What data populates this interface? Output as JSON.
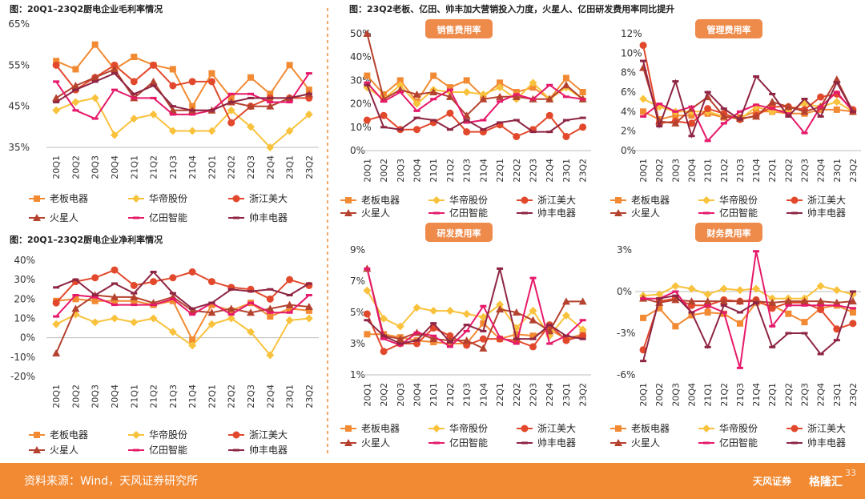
{
  "colors": {
    "orange": "#f28a33",
    "yellow": "#f9c23c",
    "red": "#e2492c",
    "darkred": "#b5422f",
    "pink": "#e6196a",
    "maroon": "#8e2543",
    "badge": "#ee8a4a"
  },
  "legend_names": [
    "老板电器",
    "华帝股份",
    "浙江美大",
    "火星人",
    "亿田智能",
    "帅丰电器"
  ],
  "quarters": [
    "20Q1",
    "20Q2",
    "20Q3",
    "20Q4",
    "21Q1",
    "21Q2",
    "21Q3",
    "21Q4",
    "22Q1",
    "22Q2",
    "22Q3",
    "22Q4",
    "23Q1",
    "23Q2"
  ],
  "footer": {
    "source": "资料来源：Wind，天风证券研究所",
    "logo_tf": "天风证券",
    "logo_glh": "格隆汇",
    "page": "33"
  },
  "chart_data": [
    {
      "type": "line",
      "title": "图：20Q1–23Q2厨电企业毛利率情况",
      "categories": [
        "20Q1",
        "20Q2",
        "20Q3",
        "20Q4",
        "21Q1",
        "21Q2",
        "21Q3",
        "21Q4",
        "22Q1",
        "22Q2",
        "22Q3",
        "22Q4",
        "23Q1",
        "23Q2"
      ],
      "yticks": [
        "65%",
        "55%",
        "45%",
        "35%"
      ],
      "ylim": [
        35,
        65
      ],
      "series": [
        {
          "name": "老板电器",
          "values": [
            56,
            54,
            60,
            54,
            57,
            55,
            54,
            45,
            53,
            47,
            52,
            48,
            55,
            49
          ]
        },
        {
          "name": "华帝股份",
          "values": [
            44,
            46,
            47,
            38,
            42,
            43,
            39,
            39,
            39,
            44,
            40,
            35,
            39,
            43
          ]
        },
        {
          "name": "浙江美大",
          "values": [
            55,
            49,
            52,
            55,
            51,
            55,
            50,
            51,
            51,
            41,
            45,
            47,
            47,
            47
          ]
        },
        {
          "name": "火星人",
          "values": [
            47,
            50,
            52,
            54,
            47,
            51,
            44,
            44,
            44,
            46,
            45,
            45,
            47,
            48
          ]
        },
        {
          "name": "亿田智能",
          "values": [
            51,
            44,
            42,
            49,
            47,
            47,
            43,
            43,
            44,
            48,
            48,
            46,
            46,
            53
          ]
        },
        {
          "name": "帅丰电器",
          "values": [
            46,
            49,
            51,
            53,
            48,
            50,
            45,
            44,
            44,
            46,
            47,
            47,
            47,
            48
          ]
        }
      ]
    },
    {
      "type": "line",
      "title": "图：20Q1–23Q2厨电企业净利率情况",
      "categories": [
        "20Q1",
        "20Q2",
        "20Q3",
        "20Q4",
        "21Q1",
        "21Q2",
        "21Q3",
        "21Q4",
        "22Q1",
        "22Q2",
        "22Q3",
        "22Q4",
        "23Q1",
        "23Q2"
      ],
      "yticks": [
        "40%",
        "30%",
        "20%",
        "10%",
        "0%",
        "-10%",
        "-20%"
      ],
      "ylim": [
        -20,
        40
      ],
      "series": [
        {
          "name": "老板电器",
          "values": [
            19,
            20,
            19,
            19,
            19,
            17,
            19,
            -1,
            17,
            14,
            18,
            11,
            15,
            14
          ]
        },
        {
          "name": "华帝股份",
          "values": [
            7,
            12,
            8,
            10,
            8,
            10,
            3,
            -4,
            7,
            10,
            3,
            -9,
            9,
            10
          ]
        },
        {
          "name": "浙江美大",
          "values": [
            18,
            29,
            31,
            35,
            27,
            29,
            31,
            34,
            29,
            26,
            25,
            20,
            30,
            27
          ]
        },
        {
          "name": "火星人",
          "values": [
            -8,
            15,
            22,
            21,
            21,
            18,
            21,
            14,
            13,
            15,
            13,
            15,
            17,
            16
          ]
        },
        {
          "name": "亿田智能",
          "values": [
            11,
            22,
            21,
            17,
            17,
            17,
            20,
            12,
            18,
            12,
            18,
            13,
            13,
            22
          ]
        },
        {
          "name": "帅丰电器",
          "values": [
            26,
            30,
            22,
            28,
            23,
            34,
            23,
            15,
            18,
            25,
            24,
            25,
            22,
            28
          ]
        }
      ]
    },
    {
      "type": "line",
      "title": "图：23Q2老板、亿田、帅丰加大营销投入力度，火星人、亿田研发费用率同比提升",
      "subtitle": "销售费用率",
      "categories": [
        "20Q1",
        "20Q2",
        "20Q3",
        "20Q4",
        "21Q1",
        "21Q2",
        "21Q3",
        "21Q4",
        "22Q1",
        "22Q2",
        "22Q3",
        "22Q4",
        "23Q1",
        "23Q2"
      ],
      "yticks": [
        "50%",
        "40%",
        "30%",
        "20%",
        "10%",
        "0%"
      ],
      "ylim": [
        0,
        50
      ],
      "series": [
        {
          "name": "老板电器",
          "values": [
            32,
            24,
            30,
            21,
            32,
            27,
            30,
            23,
            29,
            25,
            27,
            22,
            31,
            25
          ]
        },
        {
          "name": "华帝股份",
          "values": [
            27,
            22,
            28,
            20,
            26,
            25,
            25,
            24,
            27,
            22,
            29,
            22,
            27,
            22
          ]
        },
        {
          "name": "浙江美大",
          "values": [
            13,
            15,
            9,
            9,
            12,
            16,
            8,
            8,
            11,
            6,
            9,
            15,
            6,
            10
          ]
        },
        {
          "name": "火星人",
          "values": [
            50,
            22,
            26,
            24,
            25,
            23,
            15,
            22,
            23,
            23,
            22,
            22,
            28,
            22
          ]
        },
        {
          "name": "亿田智能",
          "values": [
            29,
            21,
            25,
            17,
            22,
            26,
            12,
            13,
            21,
            24,
            22,
            28,
            23,
            22
          ]
        },
        {
          "name": "帅丰电器",
          "values": [
            28,
            10,
            9,
            14,
            13,
            9,
            13,
            9,
            12,
            13,
            8,
            8,
            13,
            14
          ]
        }
      ]
    },
    {
      "type": "line",
      "subtitle": "管理费用率",
      "categories": [
        "20Q1",
        "20Q2",
        "20Q3",
        "20Q4",
        "21Q1",
        "21Q2",
        "21Q3",
        "21Q4",
        "22Q1",
        "22Q2",
        "22Q3",
        "22Q4",
        "23Q1",
        "23Q2"
      ],
      "yticks": [
        "12%",
        "10%",
        "8%",
        "6%",
        "4%",
        "2%",
        "0%"
      ],
      "ylim": [
        0,
        12
      ],
      "series": [
        {
          "name": "老板电器",
          "values": [
            4.0,
            3.2,
            3.6,
            3.6,
            3.8,
            3.4,
            3.4,
            4.0,
            4.0,
            3.8,
            3.8,
            4.2,
            4.2,
            4.0
          ]
        },
        {
          "name": "华帝股份",
          "values": [
            5.3,
            4.5,
            4.0,
            4.0,
            4.0,
            3.5,
            3.2,
            4.5,
            4.0,
            4.2,
            4.8,
            4.5,
            5.0,
            4.0
          ]
        },
        {
          "name": "浙江美大",
          "values": [
            10.8,
            2.8,
            3.0,
            2.8,
            4.3,
            3.8,
            3.2,
            3.6,
            4.5,
            4.5,
            4.2,
            5.5,
            5.8,
            4.2
          ]
        },
        {
          "name": "火星人",
          "values": [
            8.5,
            3.0,
            2.8,
            4.3,
            5.5,
            3.5,
            3.3,
            3.5,
            5.0,
            4.5,
            4.0,
            4.5,
            7.3,
            4.0
          ]
        },
        {
          "name": "亿田智能",
          "values": [
            3.5,
            4.8,
            4.0,
            4.5,
            1.0,
            2.8,
            4.0,
            4.7,
            4.3,
            3.8,
            1.8,
            4.5,
            6.0,
            4.0
          ]
        },
        {
          "name": "帅丰电器",
          "values": [
            9.2,
            2.5,
            7.1,
            1.5,
            6.0,
            4.3,
            3.2,
            7.6,
            5.8,
            3.5,
            5.3,
            3.5,
            7.0,
            4.0
          ]
        }
      ]
    },
    {
      "type": "line",
      "subtitle": "研发费用率",
      "categories": [
        "20Q1",
        "20Q2",
        "20Q3",
        "20Q4",
        "21Q1",
        "21Q2",
        "21Q3",
        "21Q4",
        "22Q1",
        "22Q2",
        "22Q3",
        "22Q4",
        "23Q1",
        "23Q2"
      ],
      "yticks": [
        "9%",
        "7%",
        "5%",
        "3%",
        "1%"
      ],
      "ylim": [
        1,
        9
      ],
      "series": [
        {
          "name": "老板电器",
          "values": [
            3.6,
            3.6,
            3.4,
            3.2,
            3.1,
            3.0,
            3.0,
            4.3,
            3.3,
            3.6,
            3.5,
            3.9,
            3.3,
            3.6
          ]
        },
        {
          "name": "华帝股份",
          "values": [
            6.4,
            4.6,
            4.1,
            5.3,
            5.1,
            5.1,
            4.9,
            4.7,
            5.5,
            4.0,
            5.1,
            3.5,
            4.8,
            3.9
          ]
        },
        {
          "name": "浙江美大",
          "values": [
            4.9,
            2.5,
            3.0,
            3.0,
            4.0,
            3.5,
            2.9,
            3.3,
            3.3,
            3.2,
            2.8,
            4.2,
            3.2,
            3.5
          ]
        },
        {
          "name": "火星人",
          "values": [
            7.8,
            3.5,
            3.3,
            3.7,
            3.3,
            3.2,
            3.2,
            2.7,
            5.2,
            5.0,
            4.5,
            3.8,
            5.7,
            5.7
          ]
        },
        {
          "name": "亿田智能",
          "values": [
            7.8,
            3.3,
            2.9,
            3.7,
            3.5,
            2.8,
            3.8,
            5.4,
            3.4,
            3.0,
            7.2,
            3.0,
            3.5,
            4.5
          ]
        },
        {
          "name": "帅丰电器",
          "values": [
            4.5,
            3.5,
            3.0,
            3.2,
            4.3,
            3.1,
            4.2,
            3.8,
            7.8,
            3.3,
            3.3,
            4.2,
            3.5,
            3.3
          ]
        }
      ]
    },
    {
      "type": "line",
      "subtitle": "财务费用率",
      "categories": [
        "20Q1",
        "20Q2",
        "20Q3",
        "20Q4",
        "21Q1",
        "21Q2",
        "21Q3",
        "21Q4",
        "22Q1",
        "22Q2",
        "22Q3",
        "22Q4",
        "23Q1",
        "23Q2"
      ],
      "yticks": [
        "3%",
        "0%",
        "-3%",
        "-6%"
      ],
      "ylim": [
        -6,
        3
      ],
      "series": [
        {
          "name": "老板电器",
          "values": [
            -1.9,
            -1.2,
            -2.5,
            -1.7,
            -1.5,
            -1.6,
            -2.3,
            -0.8,
            -1.0,
            -1.6,
            -2.2,
            -1.2,
            -1.0,
            -1.5
          ]
        },
        {
          "name": "华帝股份",
          "values": [
            -0.3,
            -0.2,
            0.4,
            0.2,
            -0.2,
            0.2,
            0.1,
            0.2,
            -0.5,
            -0.5,
            -0.5,
            0.4,
            0.1,
            -0.2
          ]
        },
        {
          "name": "浙江美大",
          "values": [
            -4.2,
            -0.7,
            -0.5,
            -1.0,
            -1.0,
            -0.6,
            -0.7,
            -0.6,
            -1.2,
            -0.8,
            -0.8,
            -1.3,
            -2.7,
            -2.3
          ]
        },
        {
          "name": "火星人",
          "values": [
            -0.5,
            -0.8,
            -0.6,
            -0.7,
            -0.7,
            -0.7,
            -0.7,
            -0.7,
            -0.8,
            -0.7,
            -0.7,
            -0.7,
            -0.8,
            -0.7
          ]
        },
        {
          "name": "亿田智能",
          "values": [
            -0.5,
            -0.5,
            0.0,
            -1.5,
            -1.0,
            -1.5,
            -5.5,
            2.9,
            -2.5,
            -1.0,
            -1.0,
            -1.0,
            -1.0,
            -1.2
          ]
        },
        {
          "name": "帅丰电器",
          "values": [
            -5.0,
            -0.5,
            -0.3,
            -1.5,
            -4.0,
            -1.0,
            -1.5,
            -0.8,
            -4.0,
            -3.0,
            -3.0,
            -4.5,
            -3.5,
            0.0
          ]
        }
      ]
    }
  ]
}
